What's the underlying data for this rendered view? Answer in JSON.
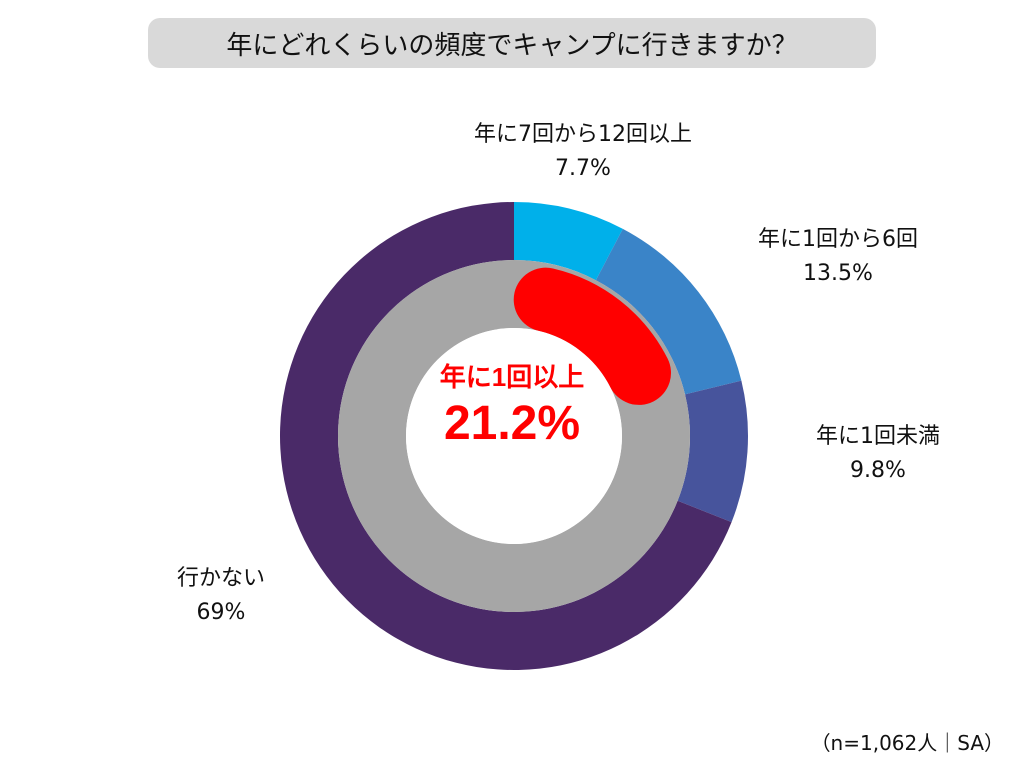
{
  "chart_data": {
    "type": "pie",
    "title": "年にどれくらいの頻度でキャンプに行きますか？",
    "slices": [
      {
        "label": "年に7回から12回以上",
        "value": 7.7,
        "display": "7.7%",
        "color": "#00b0ea"
      },
      {
        "label": "年に1回から6回",
        "value": 13.5,
        "display": "13.5%",
        "color": "#3a84c8"
      },
      {
        "label": "年に1回未満",
        "value": 9.8,
        "display": "9.8%",
        "color": "#47549c"
      },
      {
        "label": "行かない",
        "value": 69,
        "display": "69%",
        "color": "#4a2a68"
      }
    ],
    "inner_ring": {
      "value": 21.2,
      "color": "#ff0000",
      "track_color": "#a6a6a6"
    },
    "center": {
      "caption": "年に1回以上",
      "value": "21.2%"
    },
    "footnote": "（n=1,062人｜SA）"
  }
}
